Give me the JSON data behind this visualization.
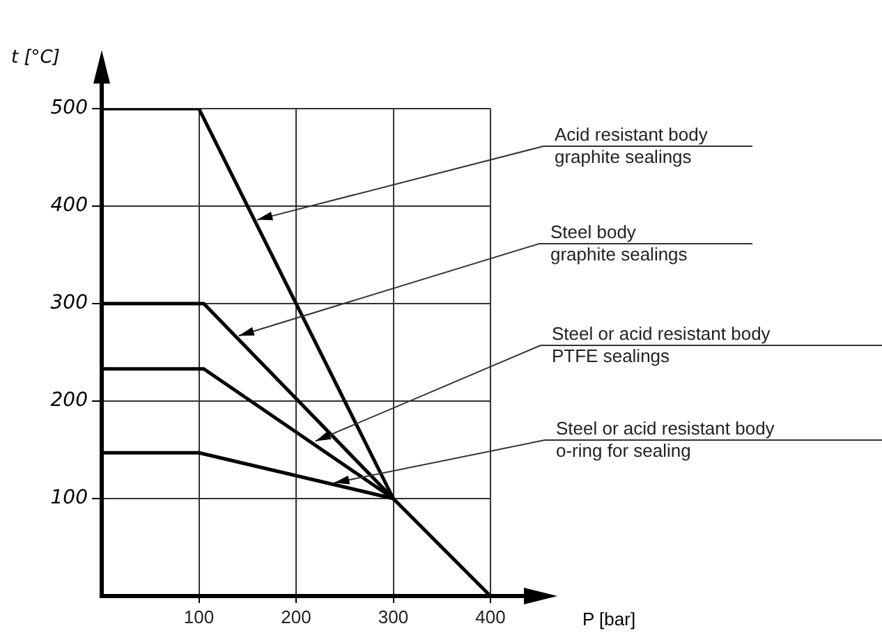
{
  "chart_data": {
    "type": "line",
    "xlabel": "P [bar]",
    "ylabel": "t [°C]",
    "xlim": [
      0,
      400
    ],
    "xticks": [
      100,
      200,
      300,
      400
    ],
    "ylim": [
      0,
      500
    ],
    "yticks": [
      100,
      200,
      300,
      400,
      500
    ],
    "grid": true,
    "legend": false,
    "marker": "none",
    "line_style": "solid",
    "series": [
      {
        "color": "#000000",
        "x": [
          0,
          100,
          300,
          400
        ],
        "values": [
          500,
          500,
          100,
          0
        ]
      },
      {
        "color": "#000000",
        "x": [
          0,
          105,
          300
        ],
        "values": [
          300,
          300,
          100
        ]
      },
      {
        "color": "#000000",
        "x": [
          0,
          105,
          300
        ],
        "values": [
          233,
          233,
          100
        ]
      },
      {
        "color": "#000000",
        "x": [
          0,
          100,
          300
        ],
        "values": [
          147,
          147,
          100
        ]
      }
    ],
    "annotations": [
      {
        "text": "Acid resistant body\ngraphite sealings",
        "x": 160,
        "y": 386
      },
      {
        "text": "Steel body\ngraphite sealings",
        "x": 141,
        "y": 267
      },
      {
        "text": "Steel or acid resistant body\nPTFE sealings",
        "x": 220,
        "y": 159
      },
      {
        "text": "Steel or acid resistant body\no-ring for sealing",
        "x": 239,
        "y": 116
      }
    ]
  }
}
